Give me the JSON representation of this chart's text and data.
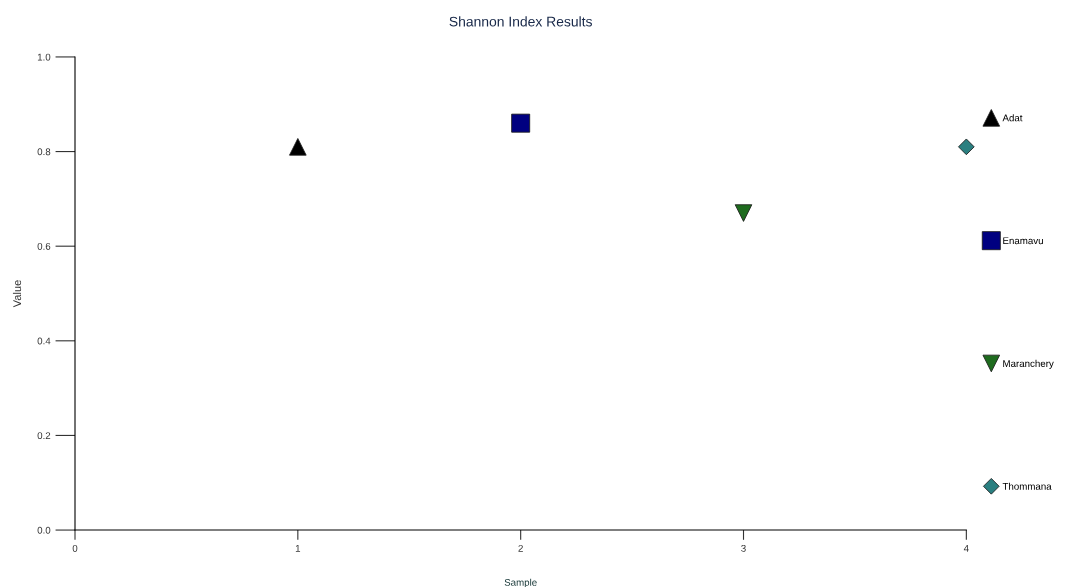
{
  "chart_data": {
    "type": "scatter",
    "title": "Shannon Index Results",
    "xlabel": "Sample",
    "ylabel": "Value",
    "xlim": [
      0,
      4
    ],
    "xticks": [
      0,
      1,
      2,
      3,
      4
    ],
    "ylim": [
      0.0,
      1.0
    ],
    "yticks": [
      {
        "value": 0,
        "label": "0.0"
      },
      {
        "value": 0.2,
        "label": "0.2"
      },
      {
        "value": 0.4,
        "label": "0.4"
      },
      {
        "value": 0.6,
        "label": "0.6"
      },
      {
        "value": 0.8,
        "label": "0.8"
      },
      {
        "value": 1,
        "label": "1.0"
      }
    ],
    "grid": false,
    "legend": "right",
    "series": [
      {
        "name": "Adat",
        "color": "#000000",
        "marker": "triangle",
        "x": [
          1
        ],
        "values": [
          0.81
        ]
      },
      {
        "name": "Enamavu",
        "color": "#000080",
        "marker": "square",
        "x": [
          2
        ],
        "values": [
          0.86
        ]
      },
      {
        "name": "Maranchery",
        "color": "#1e6b1e",
        "marker": "triangle_down",
        "x": [
          3
        ],
        "values": [
          0.67
        ]
      },
      {
        "name": "Thommana",
        "color": "#2a7f80",
        "marker": "diamond",
        "x": [
          4
        ],
        "values": [
          0.81
        ]
      }
    ]
  }
}
